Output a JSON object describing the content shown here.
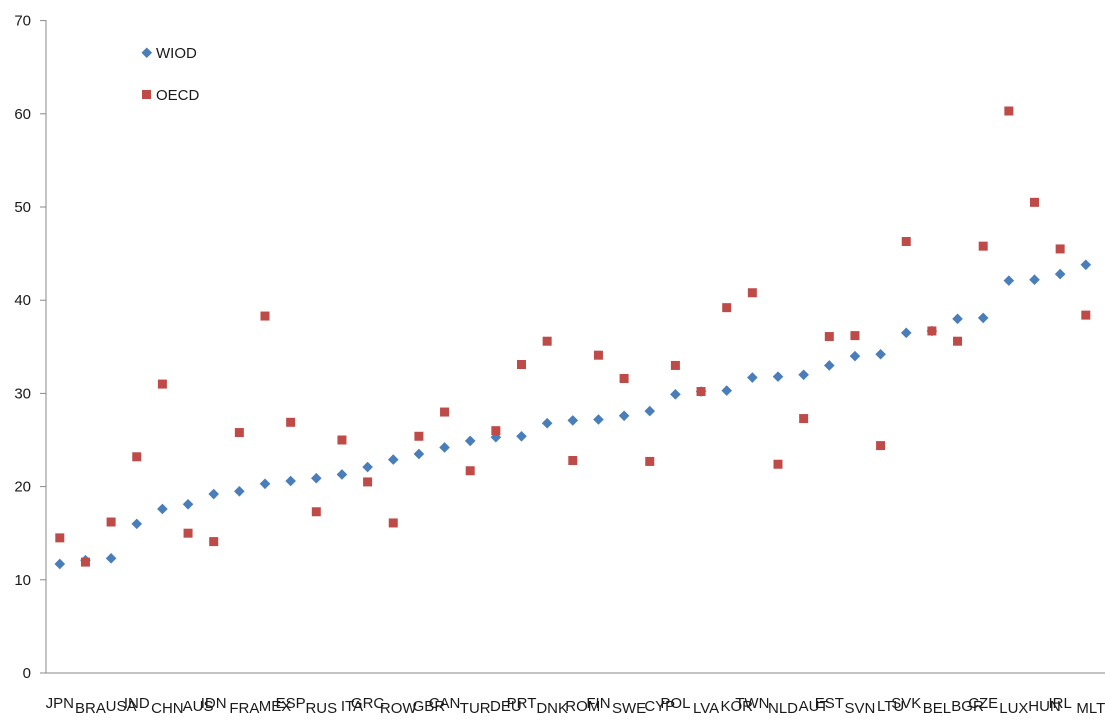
{
  "chart_data": {
    "type": "scatter",
    "title": "",
    "xlabel": "",
    "ylabel": "",
    "ylim": [
      0,
      70
    ],
    "yticks": [
      0,
      10,
      20,
      30,
      40,
      50,
      60,
      70
    ],
    "grid": false,
    "legend_position": "top-left",
    "categories": [
      "JPN",
      "BRA",
      "USA",
      "IND",
      "CHN",
      "AUS",
      "IDN",
      "FRA",
      "MEX",
      "ESP",
      "RUS",
      "ITA",
      "GRC",
      "ROW",
      "GBR",
      "CAN",
      "TUR",
      "DEU",
      "PRT",
      "DNK",
      "ROM",
      "FIN",
      "SWE",
      "CYP",
      "POL",
      "LVA",
      "KOR",
      "TWN",
      "NLD",
      "AUT",
      "EST",
      "SVN",
      "LTU",
      "SVK",
      "BEL",
      "BGR",
      "CZE",
      "LUX",
      "HUN",
      "IRL",
      "MLT"
    ],
    "series": [
      {
        "name": "WIOD",
        "marker": "diamond",
        "color": "#4a7ebb",
        "values": [
          11.7,
          12.1,
          12.3,
          16.0,
          17.6,
          18.1,
          19.2,
          19.5,
          20.3,
          20.6,
          20.9,
          21.3,
          22.1,
          22.9,
          23.5,
          24.2,
          24.9,
          25.3,
          25.4,
          26.8,
          27.1,
          27.2,
          27.6,
          28.1,
          29.9,
          30.2,
          30.3,
          31.7,
          31.8,
          32.0,
          33.0,
          34.0,
          34.2,
          36.5,
          36.7,
          38.0,
          38.1,
          42.1,
          42.2,
          42.8,
          43.8
        ]
      },
      {
        "name": "OECD",
        "marker": "square",
        "color": "#be4b48",
        "values": [
          14.5,
          11.9,
          16.2,
          23.2,
          31.0,
          15.0,
          14.1,
          25.8,
          38.3,
          26.9,
          17.3,
          25.0,
          20.5,
          16.1,
          25.4,
          28.0,
          21.7,
          26.0,
          33.1,
          35.6,
          22.8,
          34.1,
          31.6,
          22.7,
          33.0,
          30.2,
          39.2,
          40.8,
          22.4,
          27.3,
          36.1,
          36.2,
          24.4,
          46.3,
          36.7,
          35.6,
          45.8,
          60.3,
          50.5,
          45.5,
          38.4
        ]
      }
    ]
  }
}
